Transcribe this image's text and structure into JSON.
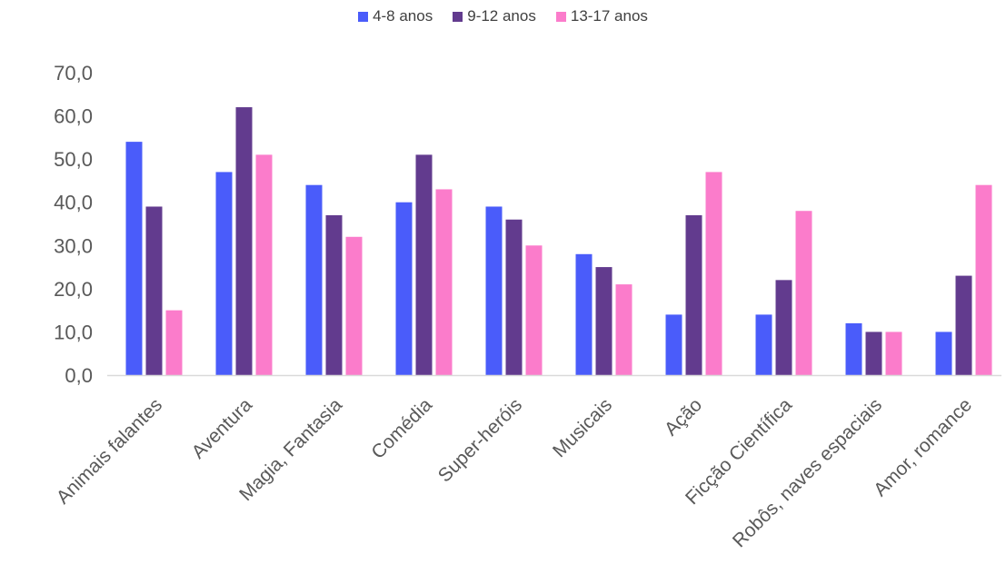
{
  "chart_data": {
    "type": "bar",
    "title": "",
    "xlabel": "",
    "ylabel": "",
    "ylim": [
      0,
      70
    ],
    "yticks": [
      "0,0",
      "10,0",
      "20,0",
      "30,0",
      "40,0",
      "50,0",
      "60,0",
      "70,0"
    ],
    "grid": false,
    "legend_position": "top",
    "categories": [
      "Animais falantes",
      "Aventura",
      "Magia, Fantasia",
      "Comédia",
      "Super-heróis",
      "Musicais",
      "Ação",
      "Ficção Científica",
      "Robôs, naves espaciais",
      "Amor, romance"
    ],
    "series": [
      {
        "name": "4-8 anos",
        "color": "#4a5cfa",
        "values": [
          54,
          47,
          44,
          40,
          39,
          28,
          14,
          14,
          12,
          10
        ]
      },
      {
        "name": "9-12 anos",
        "color": "#623b8e",
        "values": [
          39,
          62,
          37,
          51,
          36,
          25,
          37,
          22,
          10,
          23
        ]
      },
      {
        "name": "13-17 anos",
        "color": "#fb7ccb",
        "values": [
          15,
          51,
          32,
          43,
          30,
          21,
          47,
          38,
          10,
          44
        ]
      }
    ]
  }
}
